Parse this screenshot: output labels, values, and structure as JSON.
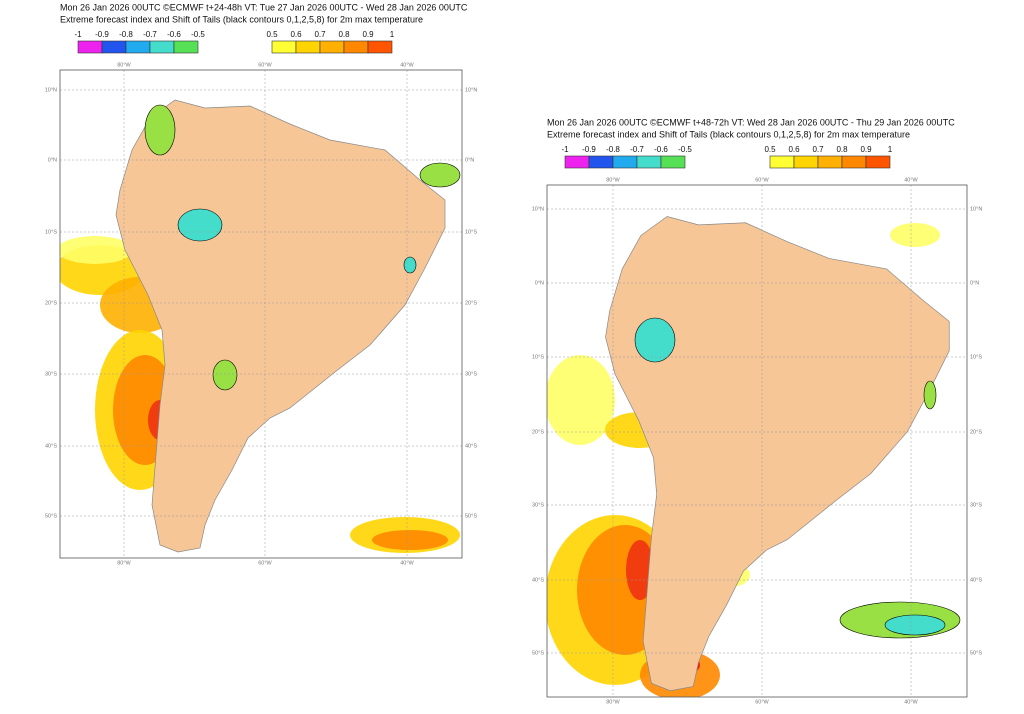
{
  "panels": [
    {
      "title_line1": "Mon 26 Jan 2026 00UTC ©ECMWF t+24-48h  VT: Tue 27 Jan 2026 00UTC - Wed 28 Jan 2026 00UTC",
      "title_line2": "Extreme forecast index and Shift of Tails (black contours 0,1,2,5,8) for 2m max temperature",
      "negative_scale": [
        "-1",
        "-0.9",
        "-0.8",
        "-0.7",
        "-0.6",
        "-0.5"
      ],
      "positive_scale": [
        "0.5",
        "0.6",
        "0.7",
        "0.8",
        "0.9",
        "1"
      ],
      "lat_labels": [
        "10°N",
        "0°N",
        "10°S",
        "20°S",
        "30°S",
        "40°S",
        "50°S"
      ],
      "lon_labels": [
        "80°W",
        "60°W",
        "40°W"
      ]
    },
    {
      "title_line1": "Mon 26 Jan 2026 00UTC ©ECMWF t+48-72h  VT: Wed 28 Jan 2026 00UTC - Thu 29 Jan 2026 00UTC",
      "title_line2": "Extreme forecast index and Shift of Tails (black contours 0,1,2,5,8) for 2m max temperature",
      "negative_scale": [
        "-1",
        "-0.9",
        "-0.8",
        "-0.7",
        "-0.6",
        "-0.5"
      ],
      "positive_scale": [
        "0.5",
        "0.6",
        "0.7",
        "0.8",
        "0.9",
        "1"
      ],
      "lat_labels": [
        "10°N",
        "0°N",
        "10°S",
        "20°S",
        "30°S",
        "40°S",
        "50°S"
      ],
      "lon_labels": [
        "80°W",
        "60°W",
        "40°W"
      ]
    }
  ]
}
